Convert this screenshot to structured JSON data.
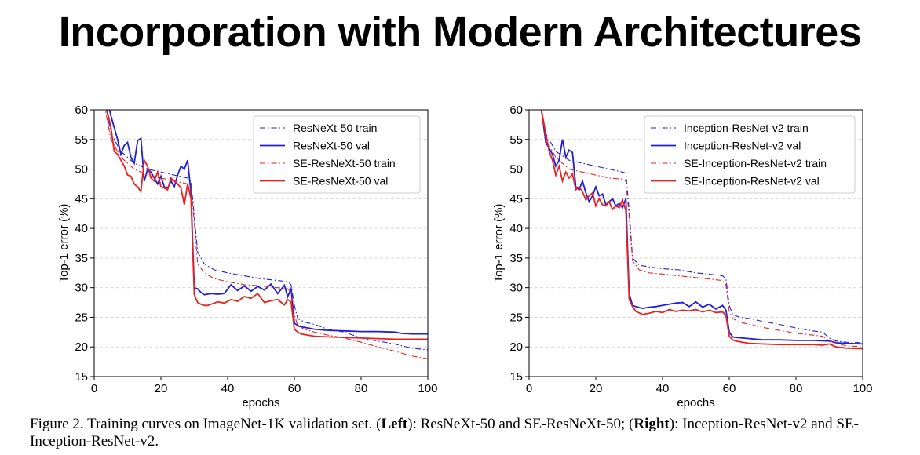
{
  "slide_title": "Incorporation with Modern Architectures",
  "caption": {
    "prefix": "Figure 2. Training curves on ImageNet-1K validation set. (",
    "left_bold": "Left",
    "mid": "): ResNeXt-50 and SE-ResNeXt-50; (",
    "right_bold": "Right",
    "suffix": "): Inception-ResNet-v2 and SE-Inception-ResNet-v2."
  },
  "colors": {
    "blue": "#1f1fd6",
    "red": "#e8231f"
  },
  "chart_data": [
    {
      "type": "line",
      "xlabel": "epochs",
      "ylabel": "Top-1 error (%)",
      "xlim": [
        0,
        100
      ],
      "ylim": [
        15,
        60
      ],
      "xticks": [
        0,
        20,
        40,
        60,
        80,
        100
      ],
      "yticks": [
        15,
        20,
        25,
        30,
        35,
        40,
        45,
        50,
        55,
        60
      ],
      "grid": true,
      "legend_position": "top-right",
      "series": [
        {
          "name": "ResNeXt-50 train",
          "color": "#1f1fd6",
          "style": "dashdot",
          "x": [
            3,
            5,
            8,
            12,
            16,
            20,
            24,
            28,
            29,
            30,
            31,
            33,
            36,
            40,
            45,
            50,
            55,
            58,
            59,
            60,
            61,
            63,
            66,
            70,
            75,
            80,
            85,
            90,
            95,
            100
          ],
          "y": [
            62,
            56,
            53,
            51,
            50,
            49.5,
            49,
            48.5,
            48,
            42,
            36,
            34,
            33,
            32.5,
            32,
            31.5,
            31.2,
            31,
            30.5,
            27,
            24.8,
            24.2,
            23.8,
            23,
            22.5,
            21.5,
            21,
            20.5,
            19.8,
            19.5
          ]
        },
        {
          "name": "ResNeXt-50 val",
          "color": "#1f1fd6",
          "style": "solid",
          "x": [
            3,
            5,
            7,
            8,
            9,
            10,
            11,
            12,
            13,
            14,
            15,
            16,
            17,
            18,
            19,
            20,
            21,
            22,
            23,
            24,
            25,
            26,
            27,
            28,
            29,
            30,
            31,
            32,
            33,
            35,
            37,
            39,
            41,
            43,
            45,
            47,
            49,
            51,
            53,
            55,
            57,
            58,
            59,
            60,
            61,
            62,
            64,
            66,
            70,
            75,
            80,
            85,
            90,
            92,
            95,
            100
          ],
          "y": [
            64,
            59,
            55,
            52.5,
            54,
            54.5,
            52,
            51,
            54.8,
            55.2,
            48,
            50,
            49.5,
            48.5,
            47.5,
            48.8,
            47,
            46.8,
            48,
            47,
            49,
            50.5,
            50,
            51.5,
            46,
            30,
            29.8,
            29.2,
            28.8,
            29,
            28.9,
            29,
            30.5,
            29.5,
            30.3,
            29.4,
            30.2,
            29.6,
            30.6,
            29,
            30.4,
            28.5,
            29.8,
            24,
            23.6,
            23.4,
            23.2,
            23,
            22.8,
            22.7,
            22.6,
            22.6,
            22.5,
            22.3,
            22.2,
            22.2
          ]
        },
        {
          "name": "SE-ResNeXt-50 train",
          "color": "#e8231f",
          "style": "dashdot",
          "x": [
            3,
            5,
            8,
            12,
            16,
            20,
            24,
            28,
            29,
            30,
            31,
            33,
            36,
            40,
            45,
            50,
            55,
            58,
            59,
            60,
            61,
            63,
            66,
            70,
            75,
            80,
            85,
            90,
            95,
            100
          ],
          "y": [
            61,
            55,
            52,
            50,
            49,
            48.5,
            48,
            47.5,
            47,
            41,
            34,
            32.5,
            31.5,
            31,
            30.5,
            30.3,
            30,
            29.8,
            29.3,
            25.5,
            23.5,
            23,
            22.5,
            22,
            21.5,
            20.8,
            20,
            19.3,
            18.5,
            18
          ]
        },
        {
          "name": "SE-ResNeXt-50 val",
          "color": "#e8231f",
          "style": "solid",
          "x": [
            3,
            5,
            6,
            7,
            8,
            9,
            10,
            11,
            12,
            13,
            14,
            15,
            16,
            17,
            18,
            19,
            20,
            21,
            22,
            23,
            24,
            25,
            26,
            27,
            28,
            29,
            30,
            31,
            32,
            33,
            34,
            35,
            37,
            39,
            41,
            43,
            45,
            47,
            49,
            51,
            53,
            55,
            57,
            58,
            59,
            60,
            61,
            62,
            64,
            66,
            70,
            75,
            80,
            85,
            90,
            95,
            100
          ],
          "y": [
            62,
            57,
            53,
            52.5,
            51.5,
            50.5,
            49,
            48.8,
            47.5,
            47,
            46.2,
            51.5,
            50.5,
            48.5,
            48,
            49.5,
            47,
            46.8,
            46.5,
            48.5,
            48,
            47.5,
            46.8,
            44,
            47.5,
            45,
            28.8,
            27.5,
            27.2,
            27,
            27,
            27.2,
            27.6,
            27.4,
            28,
            27.7,
            28.5,
            28.2,
            29,
            27.5,
            27.8,
            28,
            27.1,
            28,
            27.6,
            23,
            22.5,
            22.2,
            22,
            21.8,
            21.7,
            21.6,
            21.5,
            21.4,
            21.3,
            21.3,
            21.3
          ]
        }
      ]
    },
    {
      "type": "line",
      "xlabel": "epochs",
      "ylabel": "Top-1 error (%)",
      "xlim": [
        0,
        100
      ],
      "ylim": [
        15,
        60
      ],
      "xticks": [
        0,
        20,
        40,
        60,
        80,
        100
      ],
      "yticks": [
        15,
        20,
        25,
        30,
        35,
        40,
        45,
        50,
        55,
        60
      ],
      "grid": true,
      "legend_position": "top-right",
      "series": [
        {
          "name": "Inception-ResNet-v2 train",
          "color": "#1f1fd6",
          "style": "dashdot",
          "x": [
            3,
            5,
            8,
            12,
            16,
            20,
            24,
            28,
            29,
            30,
            31,
            33,
            36,
            40,
            45,
            50,
            55,
            58,
            59,
            60,
            61,
            63,
            66,
            70,
            75,
            80,
            85,
            88,
            90,
            92,
            95,
            100
          ],
          "y": [
            62,
            56,
            53,
            51.5,
            51,
            50.5,
            50,
            49.5,
            49.3,
            43,
            35,
            33.8,
            33.5,
            33.2,
            33,
            32.5,
            32.2,
            32,
            31.5,
            27,
            25.5,
            25,
            24.8,
            24.3,
            23.8,
            23.2,
            22.7,
            22.5,
            21.5,
            21,
            20.8,
            20.7
          ]
        },
        {
          "name": "Inception-ResNet-v2 val",
          "color": "#1f1fd6",
          "style": "solid",
          "x": [
            3,
            5,
            7,
            8,
            9,
            10,
            11,
            12,
            13,
            14,
            15,
            16,
            17,
            18,
            19,
            20,
            21,
            22,
            23,
            24,
            25,
            26,
            27,
            28,
            29,
            30,
            31,
            32,
            34,
            36,
            38,
            40,
            42,
            44,
            46,
            48,
            50,
            52,
            54,
            56,
            58,
            59,
            60,
            61,
            62,
            64,
            66,
            70,
            75,
            80,
            85,
            90,
            92,
            95,
            100
          ],
          "y": [
            63,
            54.5,
            52.5,
            50.5,
            51.5,
            55,
            52,
            53.2,
            52.8,
            47,
            46.5,
            48,
            46,
            44.5,
            45.5,
            47,
            45.5,
            45.8,
            44,
            44.5,
            45,
            43.8,
            44.2,
            43.5,
            45,
            29,
            27,
            26.8,
            26.5,
            26.7,
            26.8,
            27,
            27.2,
            27.4,
            27.5,
            26.8,
            27.6,
            26.7,
            27.2,
            26.4,
            27,
            26.2,
            22.5,
            21.7,
            21.6,
            21.5,
            21.4,
            21.2,
            21.2,
            21.1,
            21.1,
            21,
            20.7,
            20.6,
            20.5
          ]
        },
        {
          "name": "SE-Inception-ResNet-v2 train",
          "color": "#e8231f",
          "style": "dashdot",
          "x": [
            3,
            5,
            8,
            12,
            16,
            20,
            24,
            28,
            29,
            30,
            31,
            33,
            36,
            40,
            45,
            50,
            55,
            58,
            59,
            60,
            61,
            63,
            66,
            70,
            75,
            80,
            85,
            88,
            90,
            92,
            95,
            100
          ],
          "y": [
            62,
            55,
            52,
            50,
            49.5,
            49,
            48.5,
            48.3,
            48,
            42,
            34.5,
            33,
            32.5,
            32.3,
            32,
            31.7,
            31.4,
            31.2,
            30.5,
            26,
            24.8,
            24.2,
            23.8,
            23.3,
            22.8,
            22.3,
            22,
            21.8,
            21,
            20.6,
            20.2,
            20
          ]
        },
        {
          "name": "SE-Inception-ResNet-v2 val",
          "color": "#e8231f",
          "style": "solid",
          "x": [
            3,
            5,
            6,
            7,
            8,
            9,
            10,
            11,
            12,
            13,
            14,
            15,
            16,
            17,
            18,
            19,
            20,
            21,
            22,
            23,
            24,
            25,
            26,
            27,
            28,
            29,
            30,
            31,
            32,
            34,
            36,
            38,
            40,
            42,
            44,
            46,
            48,
            50,
            52,
            54,
            56,
            58,
            59,
            60,
            61,
            62,
            64,
            66,
            70,
            75,
            80,
            85,
            88,
            90,
            92,
            95,
            100
          ],
          "y": [
            62,
            56,
            53,
            51.5,
            49,
            50.5,
            48,
            49.5,
            48.5,
            49.2,
            46.5,
            47,
            46.2,
            44.8,
            45.5,
            46,
            43.8,
            45,
            44,
            43.8,
            44.5,
            43.2,
            43.8,
            43.5,
            44.8,
            43,
            28,
            26.8,
            26,
            25.5,
            25.7,
            26,
            25.8,
            26.3,
            26,
            26.2,
            26.1,
            26.3,
            25.9,
            26.2,
            25.8,
            25.9,
            25.3,
            21.8,
            21.2,
            21,
            20.8,
            20.6,
            20.5,
            20.4,
            20.4,
            20.4,
            20.3,
            20.5,
            20,
            19.8,
            19.7
          ]
        }
      ]
    }
  ]
}
